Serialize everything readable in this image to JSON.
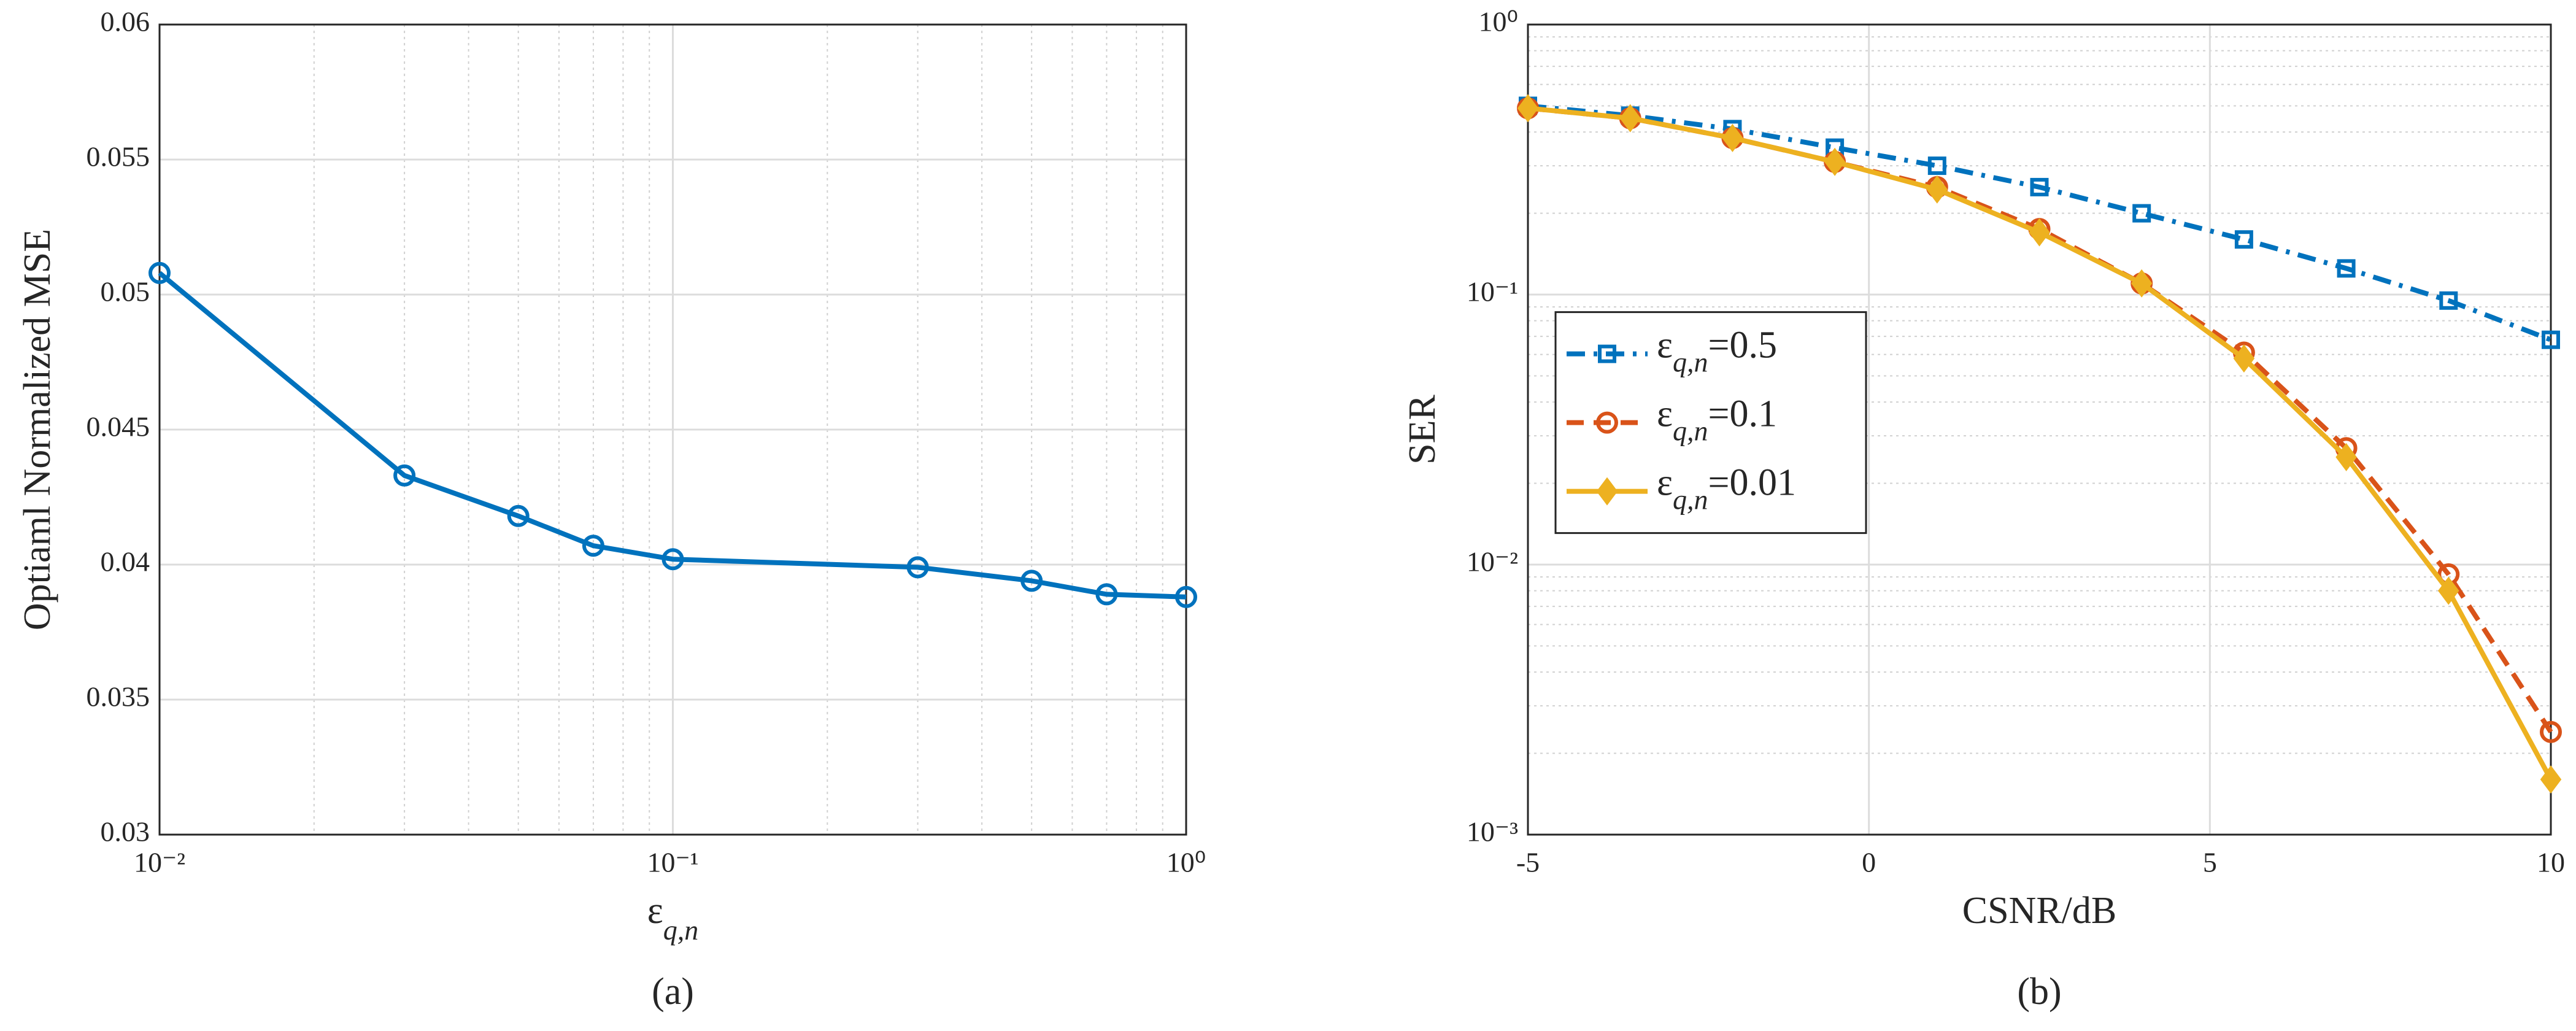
{
  "chart_data": [
    {
      "type": "line",
      "xscale": "log",
      "yscale": "linear",
      "ylabel": "Optiaml Normalized MSE",
      "xlabel": "ε",
      "xlabel_sub": "q,n",
      "caption": "(a)",
      "x": [
        0.01,
        0.03,
        0.05,
        0.07,
        0.1,
        0.3,
        0.5,
        0.7,
        1.0
      ],
      "values": [
        0.0508,
        0.0433,
        0.0418,
        0.0407,
        0.0402,
        0.0399,
        0.0394,
        0.0389,
        0.0388
      ],
      "color": "#0072bd",
      "marker": "o",
      "linestyle": "-",
      "xlim": [
        0.01,
        1
      ],
      "ylim": [
        0.03,
        0.06
      ],
      "xticks": [
        {
          "value": 0.01,
          "label": "10⁻²"
        },
        {
          "value": 0.1,
          "label": "10⁻¹"
        },
        {
          "value": 1,
          "label": "10⁰"
        }
      ],
      "yticks": [
        0.03,
        0.035,
        0.04,
        0.045,
        0.05,
        0.055,
        0.06
      ],
      "grid": true,
      "minor_grid": true
    },
    {
      "type": "line",
      "xscale": "linear",
      "yscale": "log",
      "ylabel": "SER",
      "xlabel": "CSNR/dB",
      "caption": "(b)",
      "x": [
        -5,
        -3.5,
        -2,
        -0.5,
        1,
        2.5,
        4,
        5.5,
        7,
        8.5,
        10
      ],
      "series": [
        {
          "name": {
            "base": "ε",
            "sub": "q,n",
            "rest": "=0.5"
          },
          "color": "#0072bd",
          "marker": "s",
          "linestyle": "-.",
          "values": [
            0.5,
            0.46,
            0.41,
            0.35,
            0.3,
            0.25,
            0.2,
            0.16,
            0.125,
            0.095,
            0.068
          ]
        },
        {
          "name": {
            "base": "ε",
            "sub": "q,n",
            "rest": "=0.1"
          },
          "color": "#d95319",
          "marker": "o",
          "linestyle": "--",
          "values": [
            0.49,
            0.45,
            0.38,
            0.31,
            0.25,
            0.175,
            0.11,
            0.061,
            0.027,
            0.0092,
            0.0024
          ]
        },
        {
          "name": {
            "base": "ε",
            "sub": "q,n",
            "rest": "=0.01"
          },
          "color": "#edb120",
          "marker": "d",
          "linestyle": "-",
          "values": [
            0.49,
            0.45,
            0.38,
            0.31,
            0.245,
            0.17,
            0.11,
            0.058,
            0.025,
            0.008,
            0.0016
          ]
        }
      ],
      "xlim": [
        -5,
        10
      ],
      "ylim": [
        0.001,
        1
      ],
      "xticks": [
        -5,
        0,
        5,
        10
      ],
      "yticks": [
        {
          "value": 0.001,
          "label": "10⁻³"
        },
        {
          "value": 0.01,
          "label": "10⁻²"
        },
        {
          "value": 0.1,
          "label": "10⁻¹"
        },
        {
          "value": 1,
          "label": "10⁰"
        }
      ],
      "grid": true,
      "minor_grid": true,
      "legend": "west"
    }
  ]
}
